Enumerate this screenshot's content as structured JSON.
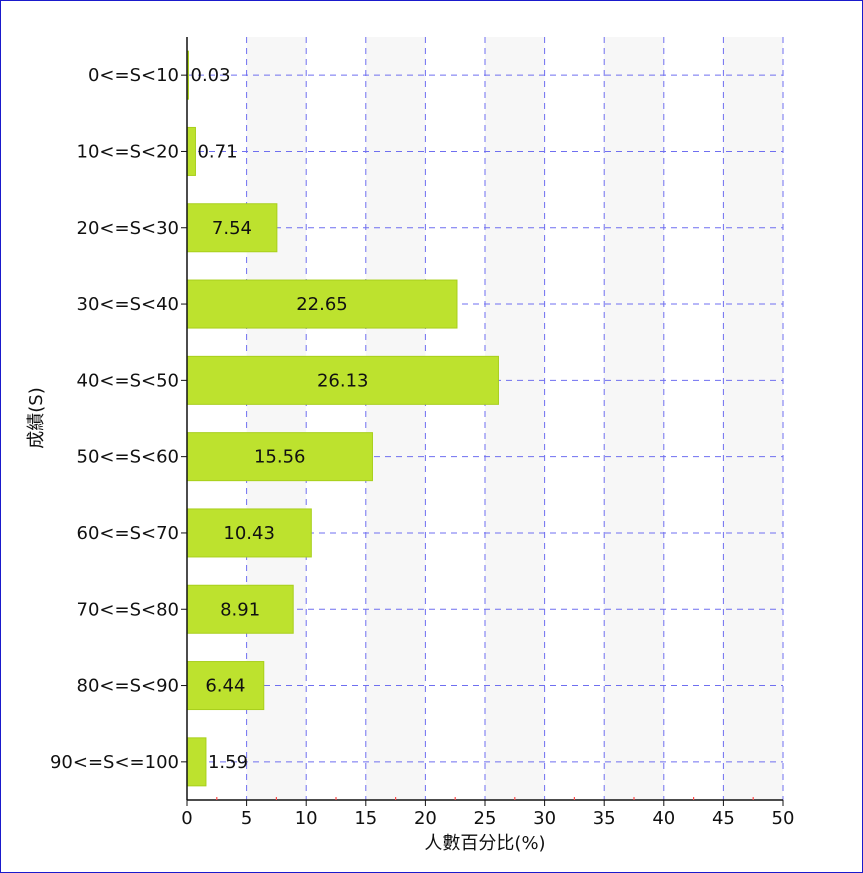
{
  "chart_data": {
    "type": "bar",
    "orientation": "horizontal",
    "categories": [
      "0<=S<10",
      "10<=S<20",
      "20<=S<30",
      "30<=S<40",
      "40<=S<50",
      "50<=S<60",
      "60<=S<70",
      "70<=S<80",
      "80<=S<90",
      "90<=S<=100"
    ],
    "values": [
      0.03,
      0.71,
      7.54,
      22.65,
      26.13,
      15.56,
      10.43,
      8.91,
      6.44,
      1.59
    ],
    "value_labels": [
      "0.03",
      "0.71",
      "7.54",
      "22.65",
      "26.13",
      "15.56",
      "10.43",
      "8.91",
      "6.44",
      "1.59"
    ],
    "xlabel": "人數百分比(%)",
    "ylabel": "成績(S)",
    "xlim": [
      0,
      50
    ],
    "xticks": [
      0,
      5,
      10,
      15,
      20,
      25,
      30,
      35,
      40,
      45,
      50
    ],
    "xtick_labels": [
      "0",
      "5",
      "10",
      "15",
      "20",
      "25",
      "30",
      "35",
      "40",
      "45",
      "50"
    ],
    "grid": true,
    "colors": {
      "bar": "#bde22e",
      "bar_edge": "#a8cf1c",
      "grid": "#6f6ff0",
      "band": "#f7f7f7",
      "minor_tick": "#ff4d4d",
      "frame": "#1a1acc"
    }
  }
}
